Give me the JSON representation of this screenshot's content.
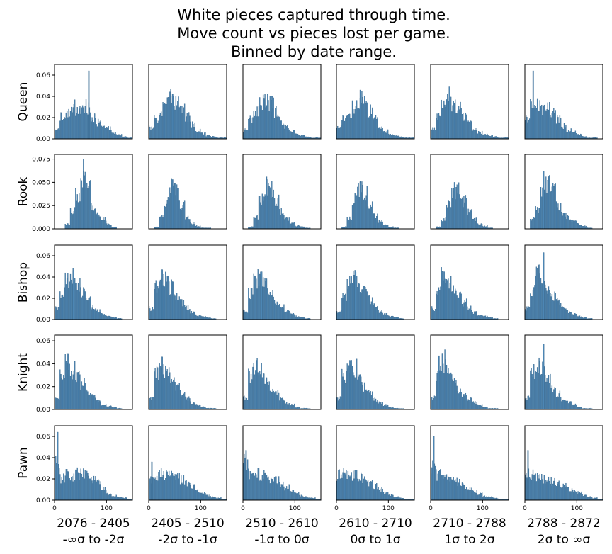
{
  "chart_data": {
    "type": "bar",
    "title_lines": [
      "White  pieces  captured through time.",
      "Move count vs pieces lost per game.",
      "Binned by date range."
    ],
    "bar_color": "#4c86b4",
    "bar_edge_color": "#2f5f85",
    "grid": false,
    "rows": [
      {
        "label": "Queen",
        "ylim": [
          0,
          0.07
        ],
        "yticks": [
          0.0,
          0.02,
          0.04,
          0.06
        ],
        "ytick_labels": [
          "0.00",
          "0.02",
          "0.04",
          "0.06"
        ]
      },
      {
        "label": "Rook",
        "ylim": [
          0,
          0.08
        ],
        "yticks": [
          0.0,
          0.025,
          0.05,
          0.075
        ],
        "ytick_labels": [
          "0.000",
          "0.025",
          "0.050",
          "0.075"
        ]
      },
      {
        "label": "Bishop",
        "ylim": [
          0,
          0.07
        ],
        "yticks": [
          0.0,
          0.02,
          0.04,
          0.06
        ],
        "ytick_labels": [
          "0.00",
          "0.02",
          "0.04",
          "0.06"
        ]
      },
      {
        "label": "Knight",
        "ylim": [
          0,
          0.065
        ],
        "yticks": [
          0.0,
          0.02,
          0.04,
          0.06
        ],
        "ytick_labels": [
          "0.00",
          "0.02",
          "0.04",
          "0.06"
        ]
      },
      {
        "label": "Pawn",
        "ylim": [
          0,
          0.07
        ],
        "yticks": [
          0.0,
          0.02,
          0.04,
          0.06
        ],
        "ytick_labels": [
          "0.00",
          "0.02",
          "0.04",
          "0.06"
        ]
      }
    ],
    "columns": [
      {
        "range": "2076 - 2405",
        "sigma": "-∞σ to -2σ"
      },
      {
        "range": "2405 - 2510",
        "sigma": "-2σ to -1σ"
      },
      {
        "range": "2510 - 2610",
        "sigma": "-1σ to 0σ"
      },
      {
        "range": "2610 - 2710",
        "sigma": "0σ to 1σ"
      },
      {
        "range": "2710 - 2788",
        "sigma": "1σ to 2σ"
      },
      {
        "range": "2788 - 2872",
        "sigma": "2σ to ∞σ"
      }
    ],
    "xlim": [
      0,
      150
    ],
    "xticks": [
      0,
      100
    ],
    "xtick_labels": [
      "0",
      "100"
    ],
    "x": [
      5,
      15,
      25,
      35,
      45,
      55,
      65,
      75,
      85,
      95,
      105,
      115,
      125,
      135,
      145
    ],
    "series": [
      [
        {
          "values": [
            0.01,
            0.02,
            0.025,
            0.03,
            0.025,
            0.03,
            0.03,
            0.02,
            0.015,
            0.01,
            0.01,
            0.005,
            0.004,
            0.002,
            0.001
          ],
          "peak": 0.064,
          "peak_x": 65
        },
        {
          "values": [
            0.01,
            0.02,
            0.028,
            0.035,
            0.038,
            0.033,
            0.027,
            0.02,
            0.013,
            0.008,
            0.005,
            0.003,
            0.002,
            0.001,
            0.001
          ],
          "peak": 0.042,
          "peak_x": 45
        },
        {
          "values": [
            0.008,
            0.018,
            0.028,
            0.034,
            0.037,
            0.033,
            0.025,
            0.017,
            0.011,
            0.007,
            0.004,
            0.003,
            0.002,
            0.001,
            0.001
          ],
          "peak": 0.04,
          "peak_x": 55
        },
        {
          "values": [
            0.01,
            0.018,
            0.024,
            0.03,
            0.037,
            0.034,
            0.026,
            0.018,
            0.012,
            0.007,
            0.004,
            0.003,
            0.002,
            0.001,
            0.001
          ],
          "peak": 0.046,
          "peak_x": 45
        },
        {
          "values": [
            0.01,
            0.022,
            0.03,
            0.035,
            0.032,
            0.028,
            0.02,
            0.014,
            0.01,
            0.006,
            0.004,
            0.003,
            0.002,
            0.001,
            0.001
          ],
          "peak": 0.049,
          "peak_x": 35
        },
        {
          "values": [
            0.018,
            0.032,
            0.03,
            0.026,
            0.03,
            0.024,
            0.018,
            0.012,
            0.008,
            0.006,
            0.004,
            0.002,
            0.001,
            0.001,
            0.0
          ],
          "peak": 0.064,
          "peak_x": 15
        }
      ],
      [
        {
          "values": [
            0.0,
            0.0,
            0.005,
            0.02,
            0.035,
            0.05,
            0.05,
            0.025,
            0.015,
            0.01,
            0.005,
            0.002,
            0.0,
            0.0,
            0.0
          ],
          "peak": 0.075,
          "peak_x": 55
        },
        {
          "values": [
            0.0,
            0.002,
            0.012,
            0.03,
            0.046,
            0.04,
            0.026,
            0.013,
            0.006,
            0.003,
            0.001,
            0.001,
            0.0,
            0.0,
            0.0
          ],
          "peak": 0.053,
          "peak_x": 45
        },
        {
          "values": [
            0.0,
            0.002,
            0.012,
            0.03,
            0.046,
            0.042,
            0.03,
            0.018,
            0.01,
            0.006,
            0.003,
            0.002,
            0.001,
            0.0,
            0.0
          ],
          "peak": 0.053,
          "peak_x": 45
        },
        {
          "values": [
            0.0,
            0.002,
            0.012,
            0.033,
            0.045,
            0.038,
            0.025,
            0.014,
            0.008,
            0.004,
            0.002,
            0.001,
            0.0,
            0.0,
            0.0
          ],
          "peak": 0.05,
          "peak_x": 45
        },
        {
          "values": [
            0.0,
            0.002,
            0.01,
            0.028,
            0.042,
            0.04,
            0.03,
            0.018,
            0.01,
            0.005,
            0.003,
            0.001,
            0.0,
            0.0,
            0.0
          ],
          "peak": 0.05,
          "peak_x": 45
        },
        {
          "values": [
            0.0,
            0.01,
            0.02,
            0.04,
            0.05,
            0.04,
            0.025,
            0.015,
            0.012,
            0.008,
            0.005,
            0.003,
            0.001,
            0.0,
            0.0
          ],
          "peak": 0.062,
          "peak_x": 35
        }
      ],
      [
        {
          "values": [
            0.01,
            0.025,
            0.038,
            0.04,
            0.032,
            0.025,
            0.018,
            0.012,
            0.008,
            0.005,
            0.003,
            0.002,
            0.001,
            0.0,
            0.0
          ],
          "peak": 0.046,
          "peak_x": 35
        },
        {
          "values": [
            0.01,
            0.03,
            0.042,
            0.038,
            0.03,
            0.022,
            0.016,
            0.011,
            0.007,
            0.004,
            0.003,
            0.002,
            0.001,
            0.0,
            0.0
          ],
          "peak": 0.047,
          "peak_x": 25
        },
        {
          "values": [
            0.008,
            0.025,
            0.038,
            0.04,
            0.032,
            0.025,
            0.018,
            0.012,
            0.008,
            0.005,
            0.003,
            0.002,
            0.001,
            0.0,
            0.0
          ],
          "peak": 0.045,
          "peak_x": 35
        },
        {
          "values": [
            0.008,
            0.022,
            0.035,
            0.04,
            0.033,
            0.026,
            0.019,
            0.013,
            0.008,
            0.005,
            0.003,
            0.002,
            0.001,
            0.0,
            0.0
          ],
          "peak": 0.046,
          "peak_x": 35
        },
        {
          "values": [
            0.01,
            0.025,
            0.04,
            0.038,
            0.03,
            0.022,
            0.016,
            0.011,
            0.007,
            0.004,
            0.003,
            0.002,
            0.001,
            0.0,
            0.0
          ],
          "peak": 0.045,
          "peak_x": 25
        },
        {
          "values": [
            0.01,
            0.028,
            0.042,
            0.04,
            0.03,
            0.022,
            0.016,
            0.01,
            0.007,
            0.005,
            0.003,
            0.002,
            0.001,
            0.0,
            0.0
          ],
          "peak": 0.063,
          "peak_x": 35
        }
      ],
      [
        {
          "values": [
            0.01,
            0.028,
            0.04,
            0.035,
            0.028,
            0.022,
            0.016,
            0.011,
            0.007,
            0.004,
            0.003,
            0.002,
            0.001,
            0.0,
            0.0
          ],
          "peak": 0.049,
          "peak_x": 25
        },
        {
          "values": [
            0.01,
            0.03,
            0.04,
            0.036,
            0.027,
            0.02,
            0.014,
            0.009,
            0.006,
            0.004,
            0.002,
            0.001,
            0.001,
            0.0,
            0.0
          ],
          "peak": 0.046,
          "peak_x": 25
        },
        {
          "values": [
            0.01,
            0.03,
            0.04,
            0.036,
            0.027,
            0.02,
            0.014,
            0.009,
            0.006,
            0.004,
            0.002,
            0.001,
            0.001,
            0.0,
            0.0
          ],
          "peak": 0.043,
          "peak_x": 25
        },
        {
          "values": [
            0.01,
            0.03,
            0.04,
            0.036,
            0.027,
            0.02,
            0.014,
            0.009,
            0.006,
            0.004,
            0.002,
            0.001,
            0.001,
            0.0,
            0.0
          ],
          "peak": 0.043,
          "peak_x": 25
        },
        {
          "values": [
            0.01,
            0.032,
            0.042,
            0.034,
            0.025,
            0.018,
            0.013,
            0.009,
            0.006,
            0.004,
            0.002,
            0.001,
            0.001,
            0.0,
            0.0
          ],
          "peak": 0.047,
          "peak_x": 15
        },
        {
          "values": [
            0.01,
            0.032,
            0.042,
            0.036,
            0.025,
            0.018,
            0.013,
            0.009,
            0.006,
            0.004,
            0.002,
            0.001,
            0.001,
            0.0,
            0.0
          ],
          "peak": 0.057,
          "peak_x": 35
        }
      ],
      [
        {
          "values": [
            0.035,
            0.02,
            0.024,
            0.022,
            0.025,
            0.026,
            0.024,
            0.02,
            0.016,
            0.01,
            0.006,
            0.004,
            0.003,
            0.002,
            0.001
          ],
          "peak": 0.064,
          "peak_x": 5
        },
        {
          "values": [
            0.02,
            0.023,
            0.024,
            0.024,
            0.023,
            0.021,
            0.019,
            0.016,
            0.012,
            0.009,
            0.006,
            0.004,
            0.003,
            0.002,
            0.001
          ],
          "peak": 0.036,
          "peak_x": 5
        },
        {
          "values": [
            0.035,
            0.026,
            0.025,
            0.024,
            0.023,
            0.021,
            0.018,
            0.015,
            0.012,
            0.009,
            0.006,
            0.004,
            0.003,
            0.002,
            0.001
          ],
          "peak": 0.047,
          "peak_x": 5
        },
        {
          "values": [
            0.024,
            0.025,
            0.024,
            0.023,
            0.021,
            0.019,
            0.016,
            0.013,
            0.01,
            0.007,
            0.005,
            0.003,
            0.002,
            0.001,
            0.001
          ],
          "peak": 0.026,
          "peak_x": 15
        },
        {
          "values": [
            0.03,
            0.024,
            0.023,
            0.021,
            0.019,
            0.017,
            0.014,
            0.011,
            0.008,
            0.006,
            0.004,
            0.003,
            0.002,
            0.001,
            0.001
          ],
          "peak": 0.06,
          "peak_x": 5
        },
        {
          "values": [
            0.025,
            0.024,
            0.022,
            0.02,
            0.018,
            0.017,
            0.015,
            0.013,
            0.011,
            0.009,
            0.007,
            0.005,
            0.003,
            0.002,
            0.001
          ],
          "peak": 0.047,
          "peak_x": 5
        }
      ]
    ]
  }
}
